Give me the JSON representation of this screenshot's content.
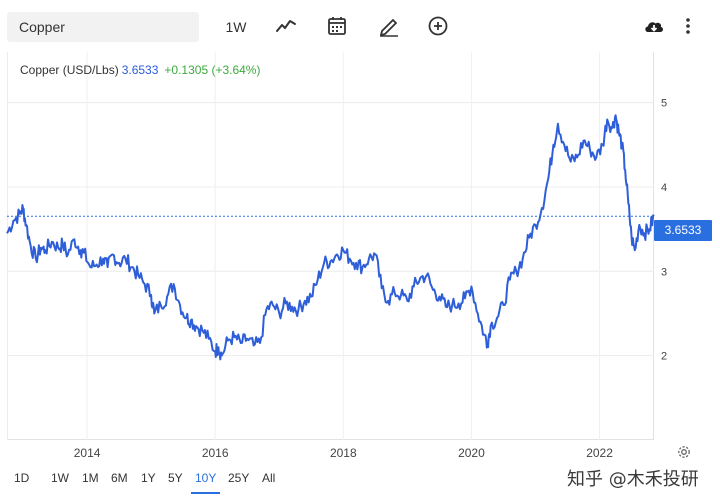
{
  "toolbar": {
    "search_value": "Copper",
    "interval_label": "1W",
    "icons": [
      "line-chart-icon",
      "calendar-icon",
      "pencil-icon",
      "plus-circle-icon",
      "cloud-download-icon",
      "more-vertical-icon"
    ]
  },
  "legend": {
    "name": "Copper (USD/Lbs)",
    "price": "3.6533",
    "change": "+0.1305 (+3.64%)"
  },
  "price_tag": "3.6533",
  "ranges": [
    {
      "label": "1D",
      "active": false
    },
    {
      "label": "1W",
      "active": false
    },
    {
      "label": "1M",
      "active": false
    },
    {
      "label": "6M",
      "active": false
    },
    {
      "label": "1Y",
      "active": false
    },
    {
      "label": "5Y",
      "active": false
    },
    {
      "label": "10Y",
      "active": true
    },
    {
      "label": "25Y",
      "active": false
    },
    {
      "label": "All",
      "active": false
    }
  ],
  "watermark": "知乎 @木禾投研",
  "colors": {
    "line": "#2f5fd8",
    "accent": "#2a6fe0",
    "positive": "#3caa3c"
  },
  "chart_data": {
    "type": "line",
    "title": "",
    "xlabel": "",
    "ylabel": "",
    "x_ticks": [
      "2014",
      "2016",
      "2018",
      "2020",
      "2022"
    ],
    "y_ticks": [
      2,
      3,
      4,
      5
    ],
    "ylim": [
      1.0,
      5.6
    ],
    "xlim": [
      2012.75,
      2022.85
    ],
    "grid": true,
    "current_value_line": 3.6533,
    "series": [
      {
        "name": "Copper (USD/Lbs)",
        "x": [
          2012.75,
          2012.85,
          2012.95,
          2013.0,
          2013.05,
          2013.12,
          2013.2,
          2013.28,
          2013.35,
          2013.45,
          2013.55,
          2013.62,
          2013.7,
          2013.8,
          2013.9,
          2013.95,
          2014.05,
          2014.15,
          2014.25,
          2014.32,
          2014.4,
          2014.5,
          2014.6,
          2014.7,
          2014.8,
          2014.9,
          2015.0,
          2015.05,
          2015.15,
          2015.25,
          2015.35,
          2015.45,
          2015.55,
          2015.62,
          2015.7,
          2015.8,
          2015.9,
          2016.0,
          2016.05,
          2016.1,
          2016.2,
          2016.3,
          2016.4,
          2016.5,
          2016.6,
          2016.7,
          2016.8,
          2016.9,
          2017.0,
          2017.1,
          2017.2,
          2017.3,
          2017.4,
          2017.5,
          2017.6,
          2017.7,
          2017.8,
          2017.9,
          2018.0,
          2018.1,
          2018.2,
          2018.3,
          2018.4,
          2018.5,
          2018.6,
          2018.7,
          2018.8,
          2018.9,
          2019.0,
          2019.1,
          2019.2,
          2019.3,
          2019.4,
          2019.5,
          2019.6,
          2019.7,
          2019.8,
          2019.9,
          2020.0,
          2020.1,
          2020.2,
          2020.25,
          2020.3,
          2020.4,
          2020.5,
          2020.6,
          2020.7,
          2020.8,
          2020.9,
          2021.0,
          2021.1,
          2021.2,
          2021.28,
          2021.35,
          2021.45,
          2021.55,
          2021.65,
          2021.75,
          2021.85,
          2021.95,
          2022.05,
          2022.12,
          2022.2,
          2022.25,
          2022.3,
          2022.35,
          2022.4,
          2022.45,
          2022.5,
          2022.55,
          2022.62,
          2022.7,
          2022.78,
          2022.85
        ],
        "y": [
          3.45,
          3.6,
          3.68,
          3.75,
          3.55,
          3.3,
          3.15,
          3.28,
          3.25,
          3.35,
          3.28,
          3.32,
          3.2,
          3.38,
          3.25,
          3.22,
          3.05,
          3.08,
          3.15,
          3.05,
          3.2,
          3.1,
          3.15,
          3.05,
          2.95,
          2.85,
          2.72,
          2.5,
          2.6,
          2.7,
          2.85,
          2.6,
          2.45,
          2.42,
          2.35,
          2.3,
          2.2,
          2.05,
          2.1,
          2.0,
          2.18,
          2.22,
          2.15,
          2.2,
          2.12,
          2.15,
          2.55,
          2.6,
          2.5,
          2.62,
          2.58,
          2.55,
          2.65,
          2.7,
          2.9,
          3.1,
          3.12,
          3.2,
          3.25,
          3.15,
          3.1,
          3.05,
          3.15,
          3.2,
          2.8,
          2.65,
          2.75,
          2.72,
          2.65,
          2.82,
          2.92,
          2.95,
          2.78,
          2.7,
          2.58,
          2.6,
          2.62,
          2.68,
          2.82,
          2.5,
          2.25,
          2.15,
          2.35,
          2.45,
          2.6,
          2.9,
          3.0,
          3.15,
          3.4,
          3.55,
          3.75,
          4.1,
          4.5,
          4.75,
          4.5,
          4.3,
          4.35,
          4.55,
          4.45,
          4.35,
          4.5,
          4.8,
          4.7,
          4.85,
          4.65,
          4.5,
          4.2,
          3.8,
          3.4,
          3.25,
          3.55,
          3.45,
          3.5,
          3.6533
        ]
      }
    ]
  }
}
